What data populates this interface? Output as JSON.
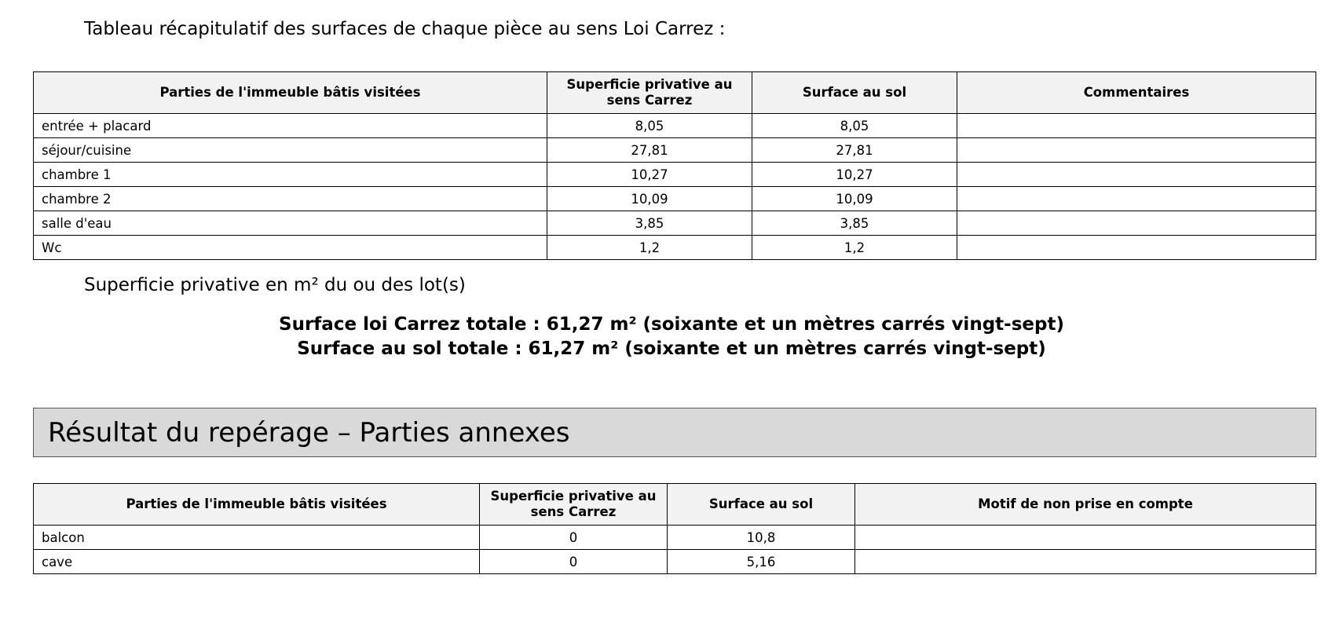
{
  "intro": "Tableau récapitulatif des surfaces de chaque pièce au sens Loi Carrez :",
  "table1": {
    "headers": [
      "Parties de l'immeuble bâtis visitées",
      "Superficie privative au sens Carrez",
      "Surface au sol",
      "Commentaires"
    ],
    "rows": [
      [
        "entrée + placard",
        "8,05",
        "8,05",
        ""
      ],
      [
        "séjour/cuisine",
        "27,81",
        "27,81",
        ""
      ],
      [
        "chambre 1",
        "10,27",
        "10,27",
        ""
      ],
      [
        "chambre 2",
        "10,09",
        "10,09",
        ""
      ],
      [
        "salle d'eau",
        "3,85",
        "3,85",
        ""
      ],
      [
        "Wc",
        "1,2",
        "1,2",
        ""
      ]
    ]
  },
  "lots_label": "Superficie privative en m² du ou des lot(s)",
  "totals": {
    "carrez": "Surface loi Carrez totale : 61,27 m² (soixante et un mètres carrés vingt-sept)",
    "sol": "Surface au sol totale : 61,27 m² (soixante et un mètres carrés vingt-sept)"
  },
  "section_title": "Résultat du repérage – Parties annexes",
  "table2": {
    "headers": [
      "Parties de l'immeuble bâtis visitées",
      "Superficie privative au sens Carrez",
      "Surface au sol",
      "Motif de non prise en compte"
    ],
    "rows": [
      [
        "balcon",
        "0",
        "10,8",
        ""
      ],
      [
        "cave",
        "0",
        "5,16",
        ""
      ]
    ]
  }
}
